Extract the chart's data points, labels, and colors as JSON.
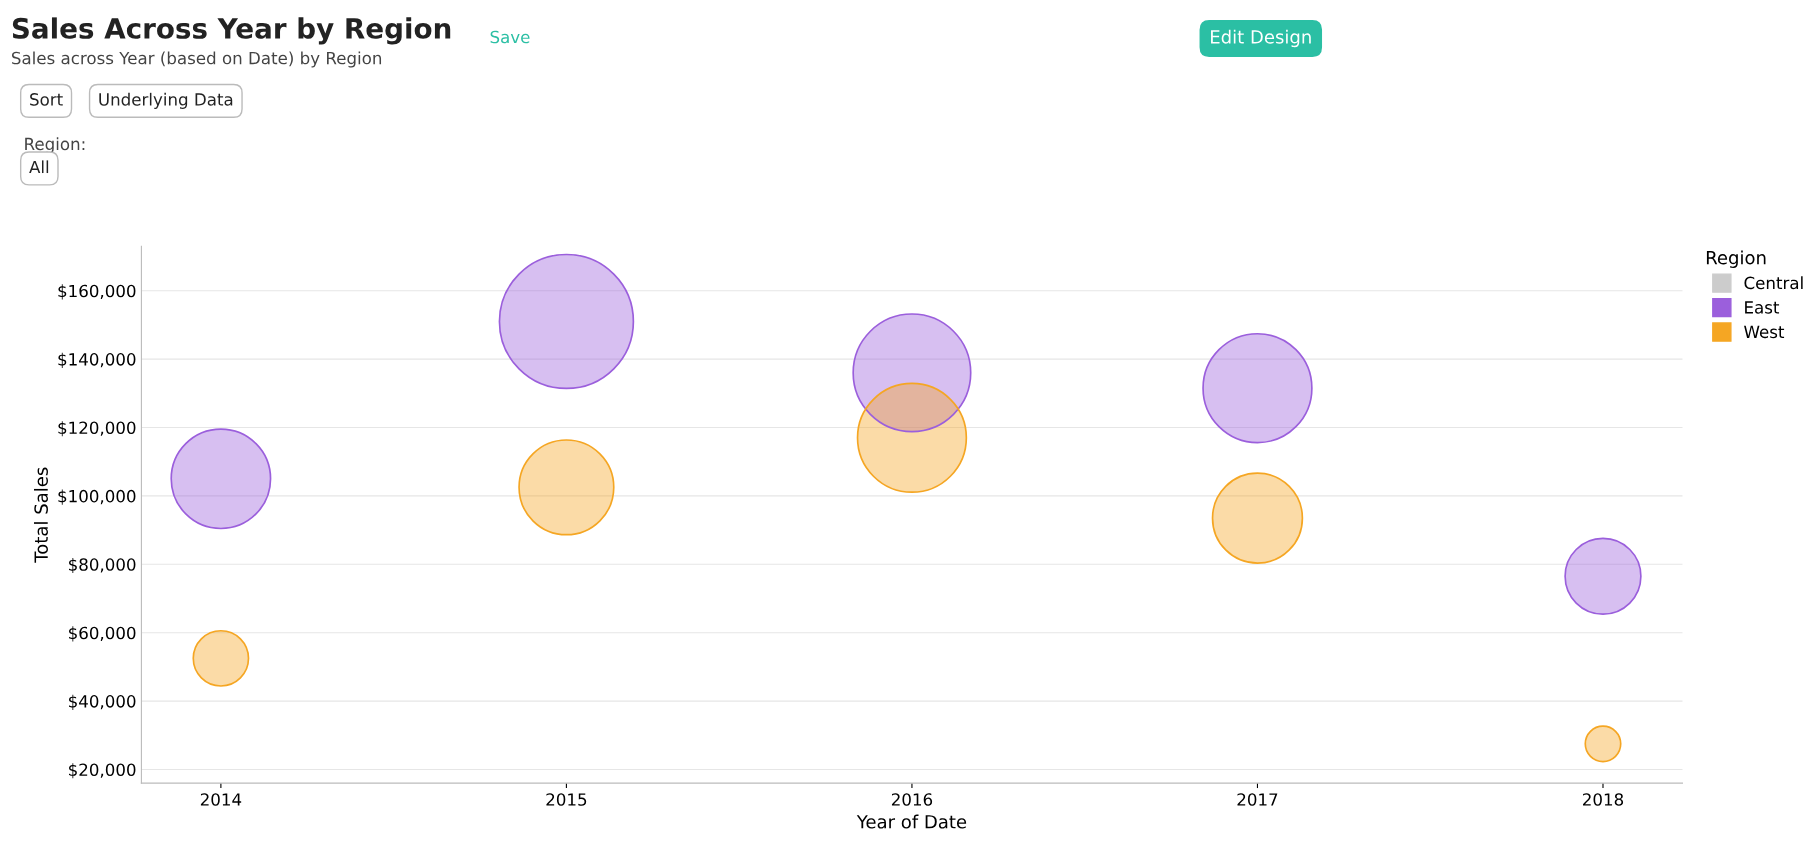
{
  "chart_data": {
    "type": "bubble",
    "title": "Sales Across Year by Region",
    "subtitle": "Sales across Year (based on Date) by Region",
    "xlabel": "Year of Date",
    "ylabel": "Total Sales",
    "legend_title": "Region",
    "annotations": [
      "Save",
      "Edit Design",
      "Sort",
      "Underlying Data",
      "Region:",
      "All"
    ],
    "categories": [
      "2014",
      "2015",
      "2016",
      "2017",
      "2018"
    ],
    "series": [
      {
        "name": "Central",
        "color": "#cccccc",
        "values": [
          null,
          null,
          null,
          null,
          null
        ],
        "sizes": [
          null,
          null,
          null,
          null,
          null
        ]
      },
      {
        "name": "East",
        "color": "#9b5fdc",
        "values": [
          105000,
          151000,
          136000,
          131500,
          76500
        ],
        "sizes": [
          0.55,
          1,
          0.77,
          0.66,
          0.32
        ]
      },
      {
        "name": "West",
        "color": "#f5a623",
        "values": [
          52500,
          102500,
          117000,
          93500,
          27500
        ],
        "sizes": [
          0.17,
          0.5,
          0.66,
          0.45,
          0.07
        ]
      }
    ],
    "ylim": [
      16000,
      173000
    ],
    "yticks": [
      {
        "value": 20000,
        "label": "$20,000"
      },
      {
        "value": 40000,
        "label": "$40,000"
      },
      {
        "value": 60000,
        "label": "$60,000"
      },
      {
        "value": 80000,
        "label": "$80,000"
      },
      {
        "value": 100000,
        "label": "$100,000"
      },
      {
        "value": 120000,
        "label": "$120,000"
      },
      {
        "value": 140000,
        "label": "$140,000"
      },
      {
        "value": 160000,
        "label": "$160,000"
      }
    ],
    "grid": "y",
    "legend": "top right"
  }
}
